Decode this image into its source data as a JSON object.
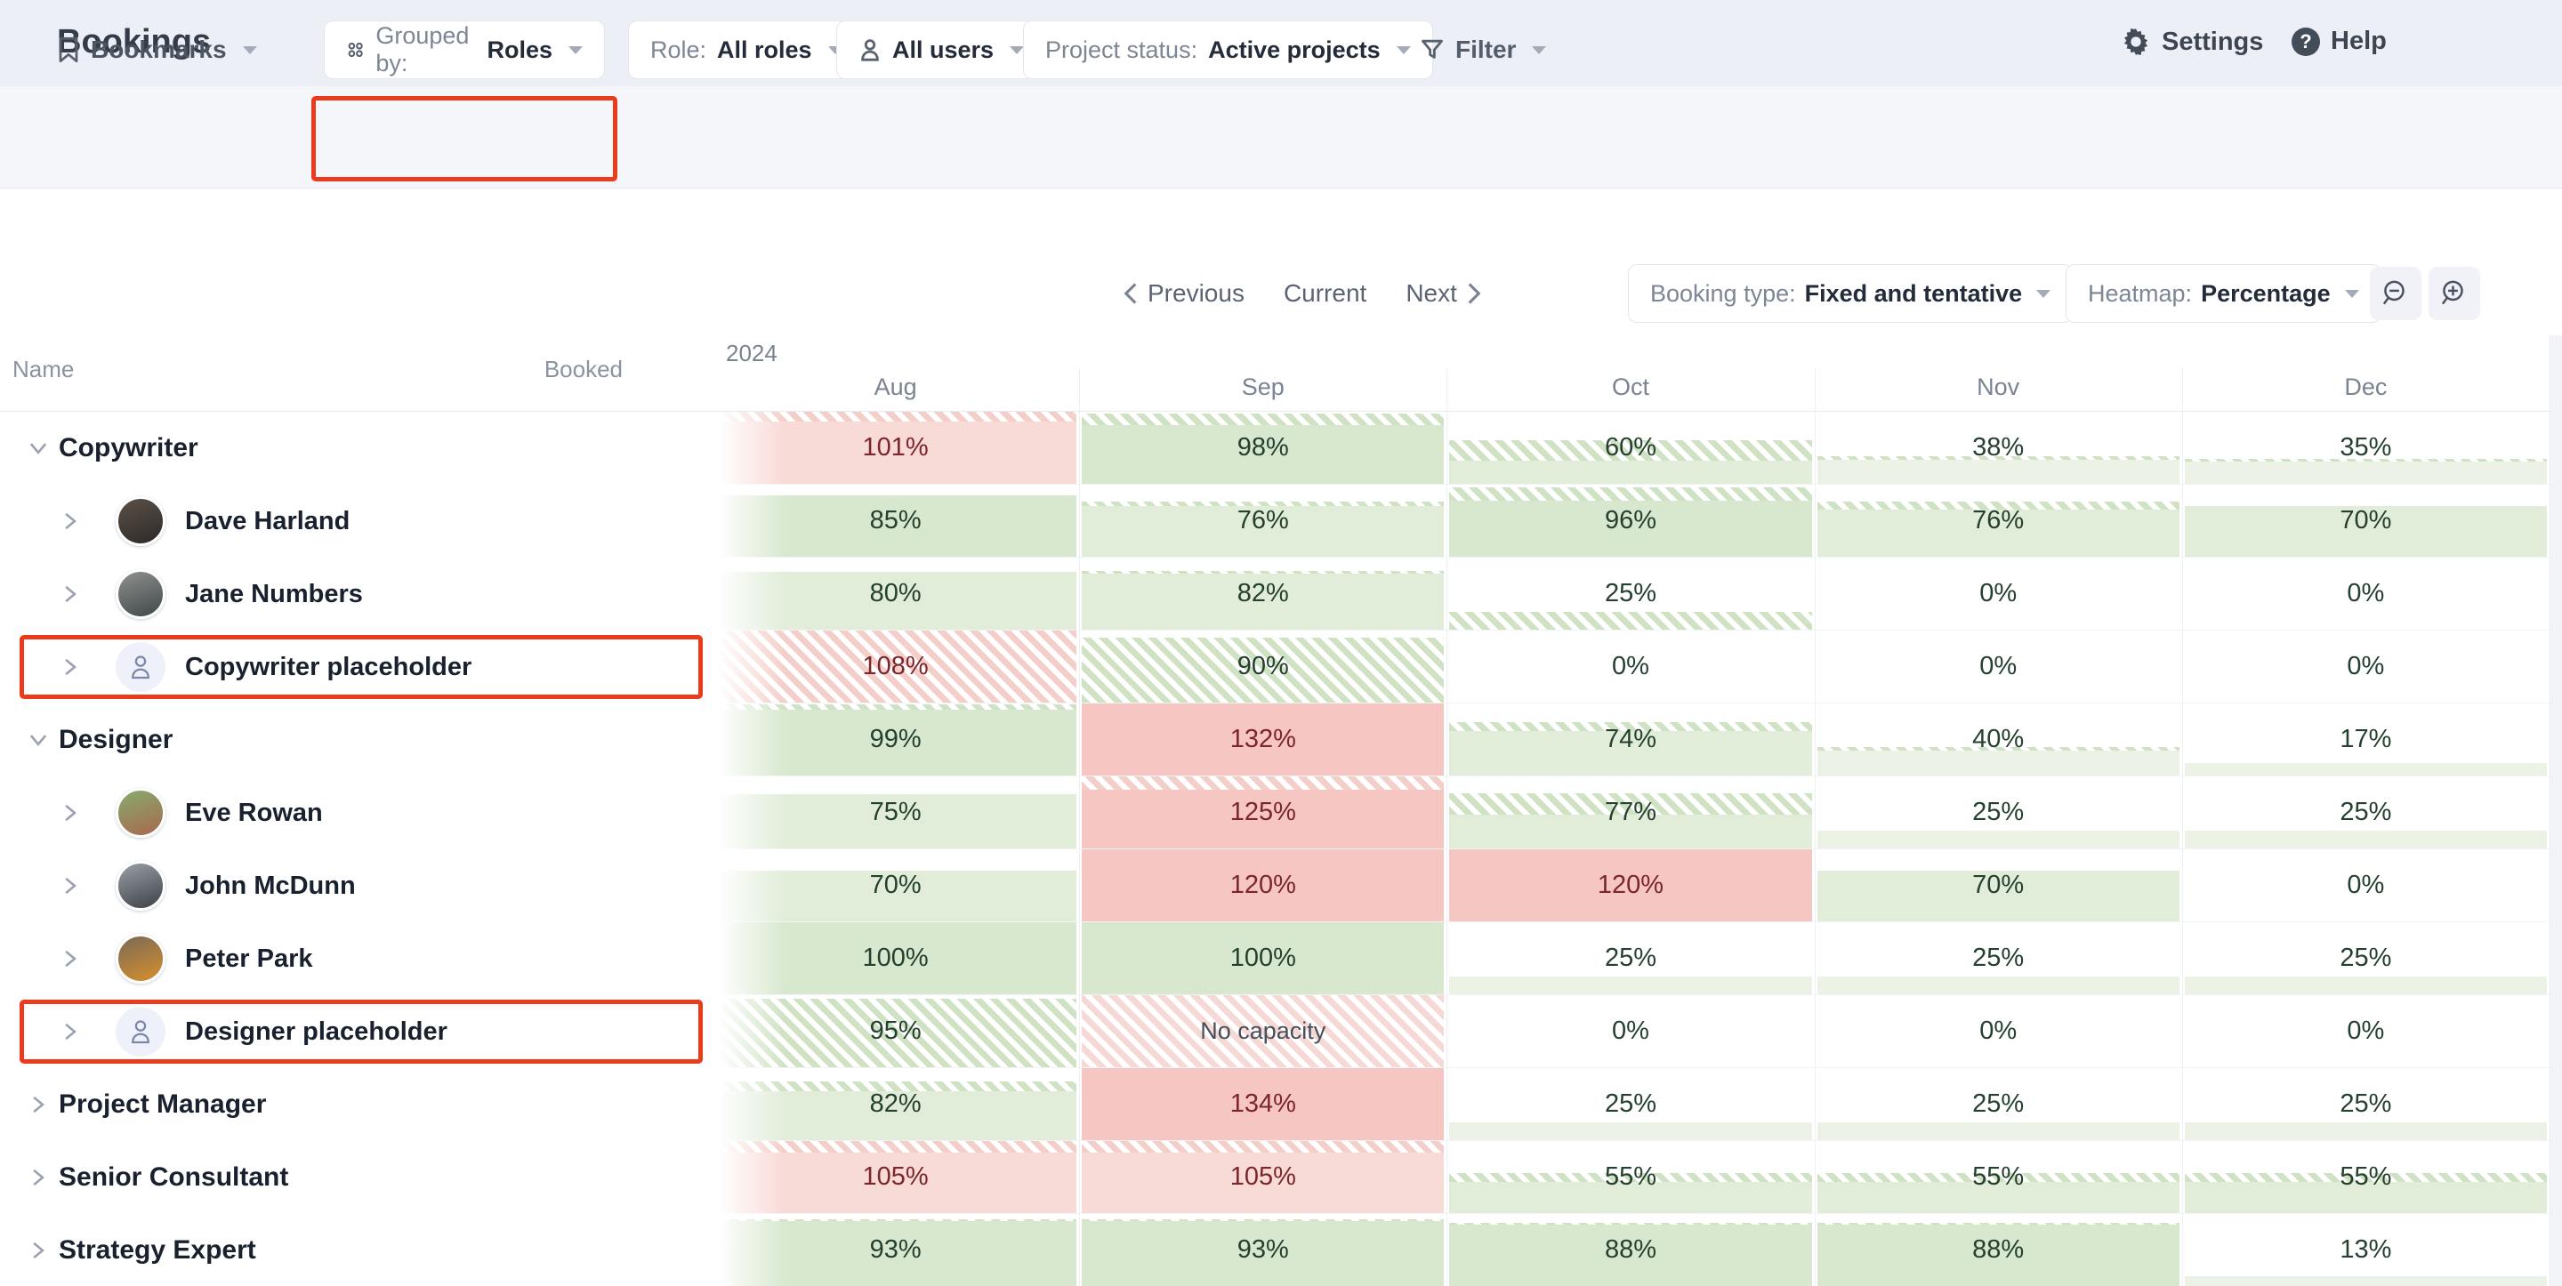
{
  "header": {
    "title": "Bookings",
    "settings_label": "Settings",
    "help_label": "Help"
  },
  "filters": {
    "bookmarks_label": "Bookmarks",
    "grouped_prefix": "Grouped by:",
    "grouped_value": "Roles",
    "role_prefix": "Role:",
    "role_value": "All roles",
    "users_value": "All users",
    "status_prefix": "Project status:",
    "status_value": "Active projects",
    "filter_label": "Filter"
  },
  "toolbar": {
    "previous": "Previous",
    "current": "Current",
    "next": "Next",
    "booking_prefix": "Booking type:",
    "booking_value": "Fixed and tentative",
    "heatmap_prefix": "Heatmap:",
    "heatmap_value": "Percentage",
    "zoom_out_icon": "magnifier-minus",
    "zoom_in_icon": "magnifier-plus"
  },
  "table": {
    "name_header": "Name",
    "booked_header": "Booked",
    "year_label": "2024",
    "months": [
      "Aug",
      "Sep",
      "Oct",
      "Nov",
      "Dec"
    ]
  },
  "colors": {
    "g1": "#ecf3e6",
    "g2": "#e1edd9",
    "g3": "#d8e8cf",
    "rl": "#f8dad7",
    "rd": "#f5c6c2",
    "hatch_g": "#cfe2c4",
    "hatch_r": "#f4cfca",
    "hatch_nc": "#f6d8d5",
    "text_green": "#25402f",
    "text_red": "#7c262c",
    "text_neutral": "#454f5b",
    "annotation": "#ea3c1c"
  },
  "rows": [
    {
      "type": "group",
      "name": "Copywriter",
      "expanded": true,
      "cells": [
        {
          "v": "101%",
          "tone": "rl",
          "fill": 100,
          "hatch": 14,
          "t": "r"
        },
        {
          "v": "98%",
          "tone": "g3",
          "fill": 98,
          "hatch": 16,
          "t": "g"
        },
        {
          "v": "60%",
          "tone": "g2",
          "fill": 60,
          "hatch": 28,
          "t": "g"
        },
        {
          "v": "38%",
          "tone": "g1",
          "fill": 38,
          "hatch": 5,
          "t": "g"
        },
        {
          "v": "35%",
          "tone": "g1",
          "fill": 35,
          "hatch": 4,
          "t": "g"
        }
      ]
    },
    {
      "type": "person",
      "name": "Dave Harland",
      "avatar": {
        "c1": "#5a5048",
        "c2": "#2e2a28"
      },
      "cells": [
        {
          "v": "85%",
          "tone": "g3",
          "fill": 85,
          "hatch": 0,
          "t": "g"
        },
        {
          "v": "76%",
          "tone": "g2",
          "fill": 76,
          "hatch": 6,
          "t": "g"
        },
        {
          "v": "96%",
          "tone": "g3",
          "fill": 96,
          "hatch": 18,
          "t": "g"
        },
        {
          "v": "76%",
          "tone": "g2",
          "fill": 76,
          "hatch": 10,
          "t": "g"
        },
        {
          "v": "70%",
          "tone": "g2",
          "fill": 70,
          "hatch": 0,
          "t": "g"
        }
      ]
    },
    {
      "type": "person",
      "name": "Jane Numbers",
      "avatar": {
        "c1": "#8d928e",
        "c2": "#41474a"
      },
      "cells": [
        {
          "v": "80%",
          "tone": "g2",
          "fill": 80,
          "hatch": 0,
          "t": "g"
        },
        {
          "v": "82%",
          "tone": "g2",
          "fill": 82,
          "hatch": 4,
          "t": "g"
        },
        {
          "v": "25%",
          "tone": "g1",
          "fill": 25,
          "hatch": 25,
          "t": "g",
          "fh": true
        },
        {
          "v": "0%",
          "tone": "none",
          "fill": 0,
          "hatch": 0,
          "t": "g"
        },
        {
          "v": "0%",
          "tone": "none",
          "fill": 0,
          "hatch": 0,
          "t": "g"
        }
      ]
    },
    {
      "type": "placeholder",
      "name": "Copywriter placeholder",
      "highlighted": true,
      "cells": [
        {
          "v": "108%",
          "tone": "rl",
          "fill": 100,
          "hatch": 100,
          "t": "r",
          "fh": true
        },
        {
          "v": "90%",
          "tone": "g3",
          "fill": 90,
          "hatch": 90,
          "t": "g",
          "fh": true
        },
        {
          "v": "0%",
          "tone": "none",
          "fill": 0,
          "hatch": 0,
          "t": "g"
        },
        {
          "v": "0%",
          "tone": "none",
          "fill": 0,
          "hatch": 0,
          "t": "g"
        },
        {
          "v": "0%",
          "tone": "none",
          "fill": 0,
          "hatch": 0,
          "t": "g"
        }
      ]
    },
    {
      "type": "group",
      "name": "Designer",
      "expanded": true,
      "cells": [
        {
          "v": "99%",
          "tone": "g3",
          "fill": 99,
          "hatch": 8,
          "t": "g"
        },
        {
          "v": "132%",
          "tone": "rd",
          "fill": 100,
          "hatch": 0,
          "t": "r"
        },
        {
          "v": "74%",
          "tone": "g2",
          "fill": 74,
          "hatch": 12,
          "t": "g"
        },
        {
          "v": "40%",
          "tone": "g1",
          "fill": 40,
          "hatch": 6,
          "t": "g"
        },
        {
          "v": "17%",
          "tone": "g1",
          "fill": 17,
          "hatch": 0,
          "t": "g"
        }
      ]
    },
    {
      "type": "person",
      "name": "Eve Rowan",
      "avatar": {
        "c1": "#86ab6d",
        "c2": "#a9684f"
      },
      "cells": [
        {
          "v": "75%",
          "tone": "g2",
          "fill": 75,
          "hatch": 0,
          "t": "g"
        },
        {
          "v": "125%",
          "tone": "rd",
          "fill": 100,
          "hatch": 18,
          "t": "r"
        },
        {
          "v": "77%",
          "tone": "g2",
          "fill": 77,
          "hatch": 30,
          "t": "g"
        },
        {
          "v": "25%",
          "tone": "g1",
          "fill": 25,
          "hatch": 0,
          "t": "g"
        },
        {
          "v": "25%",
          "tone": "g1",
          "fill": 25,
          "hatch": 0,
          "t": "g"
        }
      ]
    },
    {
      "type": "person",
      "name": "John McDunn",
      "avatar": {
        "c1": "#9aa0a6",
        "c2": "#3c4148"
      },
      "cells": [
        {
          "v": "70%",
          "tone": "g2",
          "fill": 70,
          "hatch": 0,
          "t": "g"
        },
        {
          "v": "120%",
          "tone": "rd",
          "fill": 100,
          "hatch": 0,
          "t": "r"
        },
        {
          "v": "120%",
          "tone": "rd",
          "fill": 100,
          "hatch": 0,
          "t": "r"
        },
        {
          "v": "70%",
          "tone": "g2",
          "fill": 70,
          "hatch": 0,
          "t": "g"
        },
        {
          "v": "0%",
          "tone": "none",
          "fill": 0,
          "hatch": 0,
          "t": "g"
        }
      ]
    },
    {
      "type": "person",
      "name": "Peter Park",
      "avatar": {
        "c1": "#7a6a55",
        "c2": "#d78f2e"
      },
      "cells": [
        {
          "v": "100%",
          "tone": "g3",
          "fill": 100,
          "hatch": 0,
          "t": "g"
        },
        {
          "v": "100%",
          "tone": "g3",
          "fill": 100,
          "hatch": 0,
          "t": "g"
        },
        {
          "v": "25%",
          "tone": "g1",
          "fill": 25,
          "hatch": 0,
          "t": "g"
        },
        {
          "v": "25%",
          "tone": "g1",
          "fill": 25,
          "hatch": 0,
          "t": "g"
        },
        {
          "v": "25%",
          "tone": "g1",
          "fill": 25,
          "hatch": 0,
          "t": "g"
        }
      ]
    },
    {
      "type": "placeholder",
      "name": "Designer placeholder",
      "highlighted": true,
      "cells": [
        {
          "v": "95%",
          "tone": "g3",
          "fill": 95,
          "hatch": 95,
          "t": "g",
          "fh": true
        },
        {
          "v": "No capacity",
          "tone": "nc",
          "fill": 100,
          "hatch": 100,
          "t": "n",
          "fh": true
        },
        {
          "v": "0%",
          "tone": "none",
          "fill": 0,
          "hatch": 0,
          "t": "g"
        },
        {
          "v": "0%",
          "tone": "none",
          "fill": 0,
          "hatch": 0,
          "t": "g"
        },
        {
          "v": "0%",
          "tone": "none",
          "fill": 0,
          "hatch": 0,
          "t": "g"
        }
      ]
    },
    {
      "type": "group",
      "name": "Project Manager",
      "expanded": false,
      "cells": [
        {
          "v": "82%",
          "tone": "g2",
          "fill": 82,
          "hatch": 14,
          "t": "g"
        },
        {
          "v": "134%",
          "tone": "rd",
          "fill": 100,
          "hatch": 0,
          "t": "r"
        },
        {
          "v": "25%",
          "tone": "g1",
          "fill": 25,
          "hatch": 0,
          "t": "g"
        },
        {
          "v": "25%",
          "tone": "g1",
          "fill": 25,
          "hatch": 0,
          "t": "g"
        },
        {
          "v": "25%",
          "tone": "g1",
          "fill": 25,
          "hatch": 0,
          "t": "g"
        }
      ]
    },
    {
      "type": "group",
      "name": "Senior Consultant",
      "expanded": false,
      "cells": [
        {
          "v": "105%",
          "tone": "rl",
          "fill": 100,
          "hatch": 16,
          "t": "r"
        },
        {
          "v": "105%",
          "tone": "rl",
          "fill": 100,
          "hatch": 16,
          "t": "r"
        },
        {
          "v": "55%",
          "tone": "g2",
          "fill": 55,
          "hatch": 12,
          "t": "g"
        },
        {
          "v": "55%",
          "tone": "g2",
          "fill": 55,
          "hatch": 12,
          "t": "g"
        },
        {
          "v": "55%",
          "tone": "g2",
          "fill": 55,
          "hatch": 12,
          "t": "g"
        }
      ]
    },
    {
      "type": "group",
      "name": "Strategy Expert",
      "expanded": false,
      "cells": [
        {
          "v": "93%",
          "tone": "g3",
          "fill": 93,
          "hatch": 3,
          "t": "g"
        },
        {
          "v": "93%",
          "tone": "g3",
          "fill": 93,
          "hatch": 3,
          "t": "g"
        },
        {
          "v": "88%",
          "tone": "g3",
          "fill": 88,
          "hatch": 3,
          "t": "g"
        },
        {
          "v": "88%",
          "tone": "g3",
          "fill": 88,
          "hatch": 3,
          "t": "g"
        },
        {
          "v": "13%",
          "tone": "g1",
          "fill": 13,
          "hatch": 0,
          "t": "g"
        }
      ]
    }
  ],
  "annotations": {
    "row_indexes": [
      3,
      8
    ]
  }
}
